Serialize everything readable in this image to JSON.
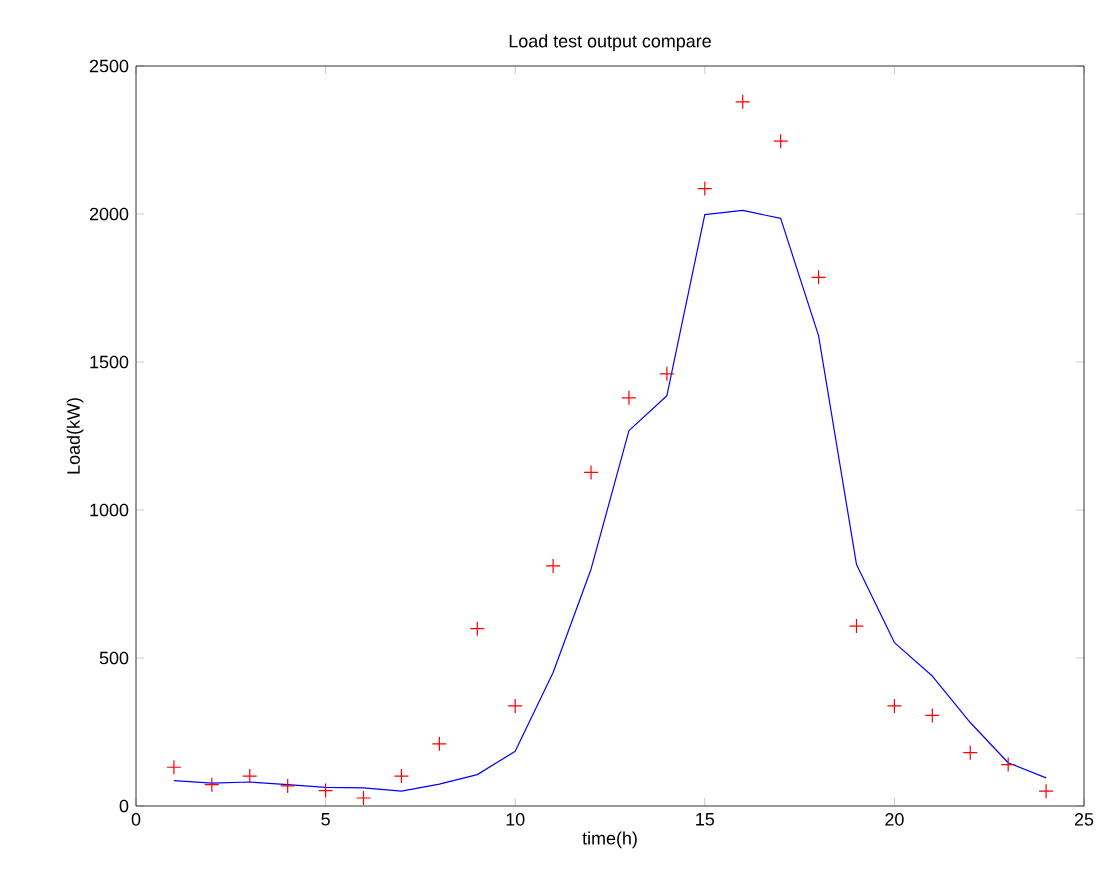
{
  "chart_data": {
    "type": "line",
    "title": "Load test output compare",
    "xlabel": "time(h)",
    "ylabel": "Load(kW)",
    "xlim": [
      0,
      25
    ],
    "xticks": [
      0,
      5,
      10,
      15,
      20,
      25
    ],
    "ylim": [
      0,
      2500
    ],
    "yticks": [
      0,
      500,
      1000,
      1500,
      2000,
      2500
    ],
    "series": [
      {
        "type": "line",
        "color": "#0000ff",
        "marker": "none",
        "line_style": "solid",
        "x": [
          1,
          2,
          3,
          4,
          5,
          6,
          7,
          8,
          9,
          10,
          11,
          12,
          13,
          14,
          15,
          16,
          17,
          18,
          19,
          20,
          21,
          22,
          23,
          24
        ],
        "values": [
          86,
          77,
          81,
          72,
          63,
          61,
          50,
          74,
          106,
          185,
          451,
          800,
          1268,
          1386,
          1998,
          2012,
          1985,
          1589,
          816,
          552,
          439,
          282,
          146,
          95
        ]
      },
      {
        "type": "scatter",
        "color": "#ff0000",
        "marker": "cross",
        "x": [
          1,
          2,
          3,
          4,
          5,
          6,
          7,
          8,
          9,
          10,
          11,
          12,
          13,
          14,
          15,
          16,
          17,
          18,
          19,
          20,
          21,
          22,
          23,
          24
        ],
        "values": [
          131,
          72,
          101,
          68,
          52,
          27,
          101,
          210,
          599,
          338,
          811,
          1127,
          1379,
          1460,
          2086,
          2379,
          2246,
          1786,
          608,
          338,
          306,
          180,
          140,
          50
        ]
      }
    ]
  }
}
